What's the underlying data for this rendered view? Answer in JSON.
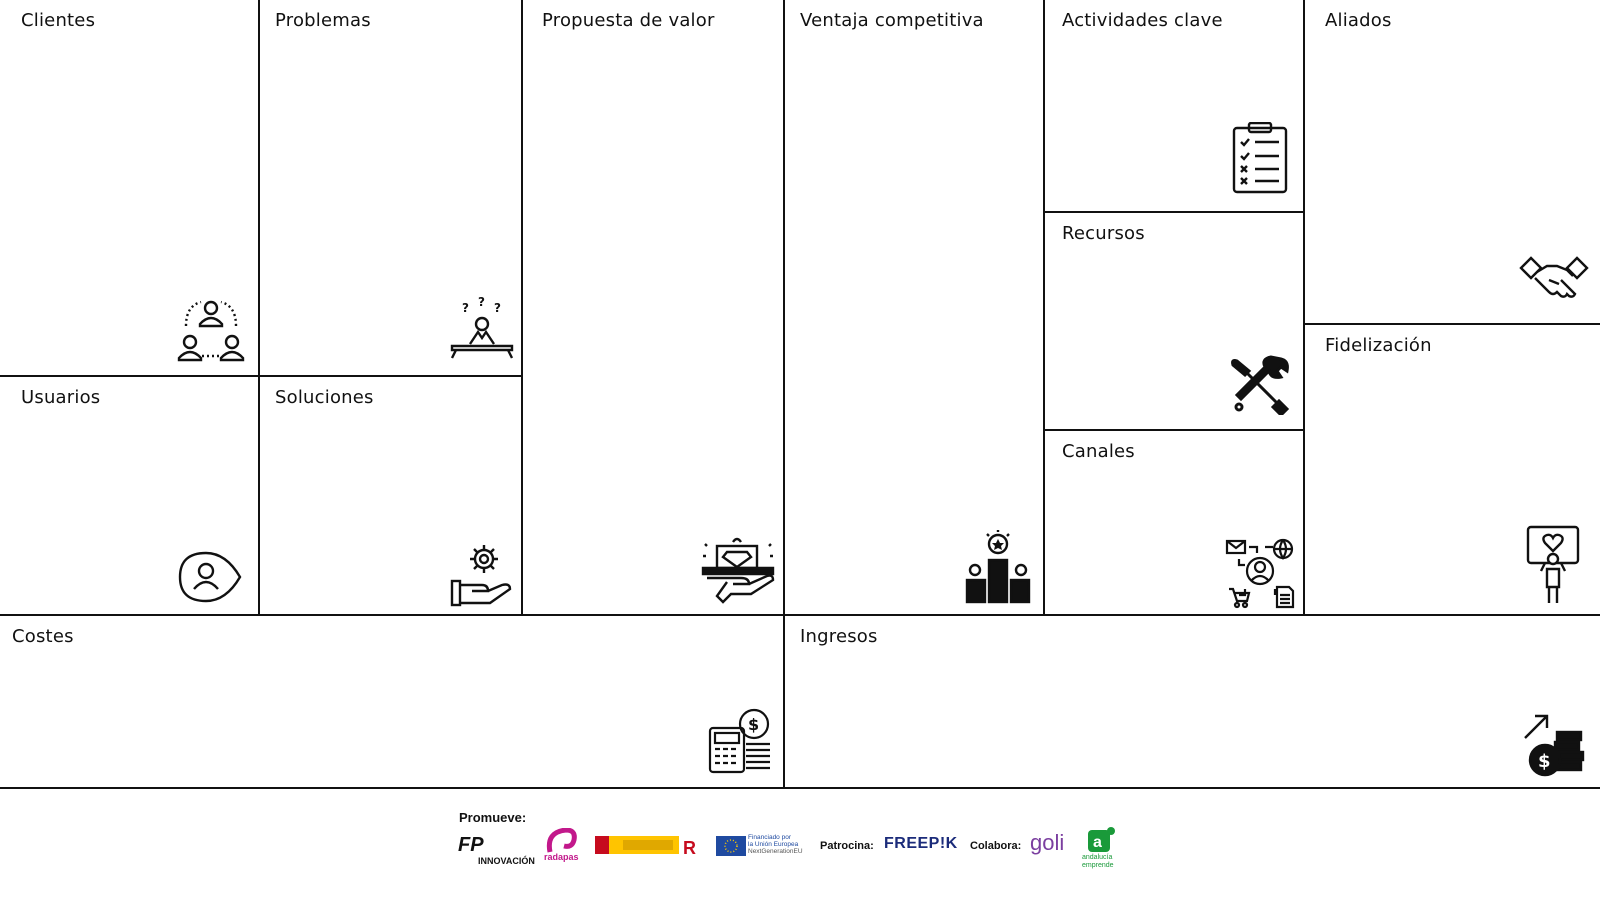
{
  "canvas_sections": {
    "clientes": "Clientes",
    "problemas": "Problemas",
    "propuesta": "Propuesta de valor",
    "ventaja": "Ventaja competitiva",
    "actividades": "Actividades clave",
    "aliados": "Aliados",
    "recursos": "Recursos",
    "fidelizacion": "Fidelización",
    "usuarios": "Usuarios",
    "soluciones": "Soluciones",
    "canales": "Canales",
    "costes": "Costes",
    "ingresos": "Ingresos"
  },
  "icons": {
    "clientes": "people-network-icon",
    "problemas": "thinking-person-icon",
    "propuesta": "gift-hand-icon",
    "ventaja": "podium-icon",
    "actividades": "checklist-icon",
    "aliados": "handshake-icon",
    "recursos": "tools-icon",
    "fidelizacion": "heart-sign-icon",
    "usuarios": "user-pin-icon",
    "soluciones": "gear-hand-icon",
    "canales": "omnichannel-icon",
    "costes": "calculator-coins-icon",
    "ingresos": "revenue-growth-icon"
  },
  "footer": {
    "promueve": "Promueve:",
    "fp_logo": "FP",
    "fp_sub": "INNOVACIÓN",
    "radapas": "radapas",
    "eu_text_1": "Financiado por",
    "eu_text_2": "la Unión Europea",
    "eu_text_3": "NextGenerationEU",
    "patrocina": "Patrocina:",
    "freepik": "FREEP!K",
    "colabora": "Colabora:",
    "goli": "goli",
    "andalucia_1": "andalucía",
    "andalucia_2": "emprende"
  },
  "colors": {
    "line": "#111111",
    "radapas": "#c2188b",
    "spain_red": "#c60b1e",
    "spain_yellow": "#ffc400",
    "eu_blue": "#1f4aa0",
    "freepik": "#1b2b7a",
    "goli": "#7b3fa0",
    "andalucia": "#1a9a3a"
  }
}
